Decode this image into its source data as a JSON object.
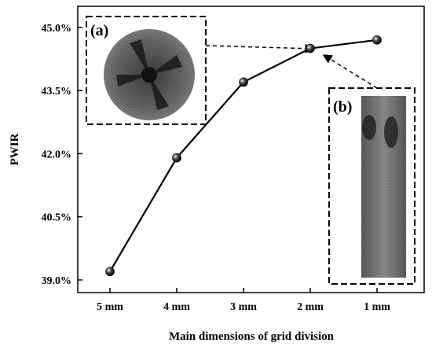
{
  "chart_data": {
    "type": "line",
    "xlabel": "Main dimensions of grid division",
    "ylabel": "PWIR",
    "categories": [
      "5 mm",
      "4 mm",
      "3 mm",
      "2 mm",
      "1 mm"
    ],
    "series": [
      {
        "values": [
          39.2,
          41.9,
          43.7,
          44.5,
          44.7
        ]
      }
    ],
    "ylim": [
      38.7,
      45.5
    ],
    "yticks": [
      39.0,
      40.5,
      42.0,
      43.5,
      45.0
    ],
    "ytick_labels": [
      "39.0%",
      "40.5%",
      "42.0%",
      "43.5%",
      "45.0%"
    ],
    "grid": false,
    "line_color": "#000000",
    "marker": "sphere"
  },
  "insets": {
    "a": {
      "label": "(a)",
      "content": "coarse mesh of a cylindrical model",
      "points_to": "2 mm"
    },
    "b": {
      "label": "(b)",
      "content": "fine mesh of a cylindrical model",
      "points_to": "2 mm"
    }
  }
}
